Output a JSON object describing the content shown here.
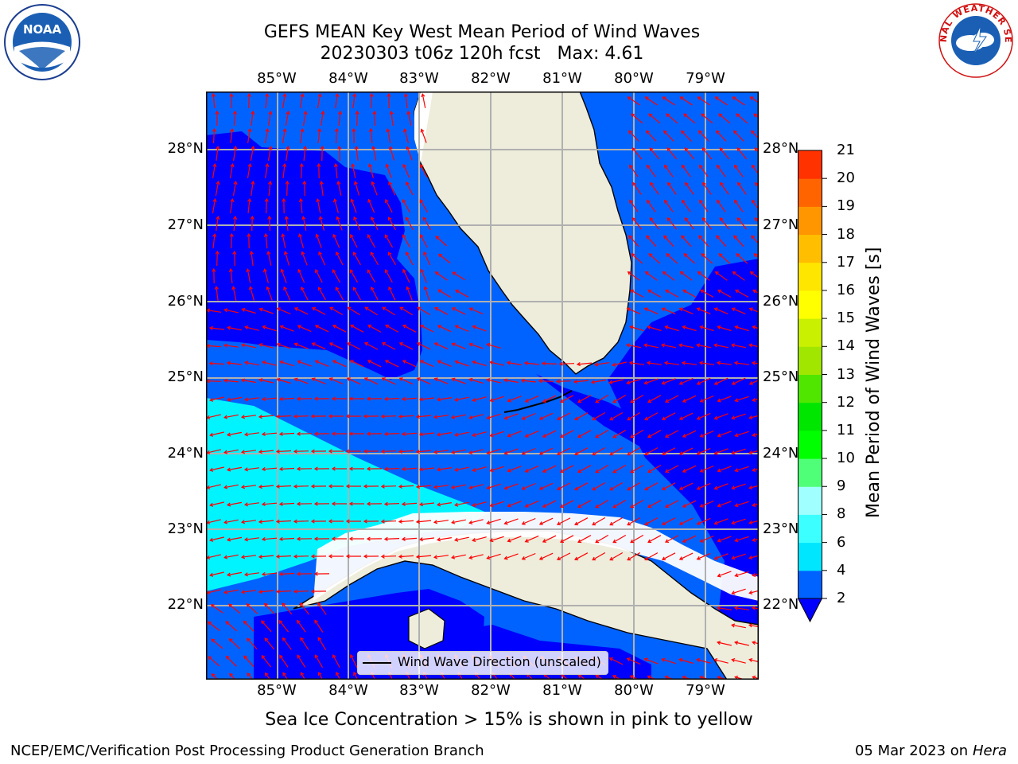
{
  "header": {
    "title_line1": "GEFS MEAN Key West Mean Period of Wind Waves",
    "title_line2": "20230303 t06z 120h fcst",
    "max_label": "Max: 4.61"
  },
  "map": {
    "lon_ticks": [
      "85°W",
      "84°W",
      "83°W",
      "82°W",
      "81°W",
      "80°W",
      "79°W"
    ],
    "lat_ticks": [
      "28°N",
      "27°N",
      "26°N",
      "25°N",
      "24°N",
      "23°N",
      "22°N"
    ],
    "legend_label": "Wind Wave Direction (unscaled)",
    "colors": {
      "land": "#eeeddc",
      "blue2": "#0063ff",
      "blue_dark": "#0000ff",
      "cyan4": "#00f4ff",
      "arrow": "#ff0000"
    }
  },
  "colorbar": {
    "ticks": [
      "2",
      "4",
      "6",
      "8",
      "9",
      "10",
      "11",
      "12",
      "13",
      "14",
      "15",
      "16",
      "17",
      "18",
      "19",
      "20",
      "21"
    ],
    "label": "Mean Period of Wind Waves [s]",
    "colors": [
      "#0063ff",
      "#00e6ff",
      "#3cffff",
      "#a0ffff",
      "#50ff78",
      "#00ff00",
      "#00e600",
      "#50e600",
      "#a0e600",
      "#c8f000",
      "#ffff00",
      "#ffe600",
      "#ffbe00",
      "#ff9600",
      "#ff6400",
      "#ff3200",
      "#ff0000"
    ]
  },
  "footer": {
    "note": "Sea Ice Concentration > 15% is shown in pink to yellow",
    "credit": "NCEP/EMC/Verification Post Processing Product Generation Branch",
    "date": "05 Mar 2023 on",
    "host": "Hera"
  },
  "logos": {
    "noaa_text": "NOAA",
    "nws_text": "NATIONAL WEATHER SERVICE"
  }
}
